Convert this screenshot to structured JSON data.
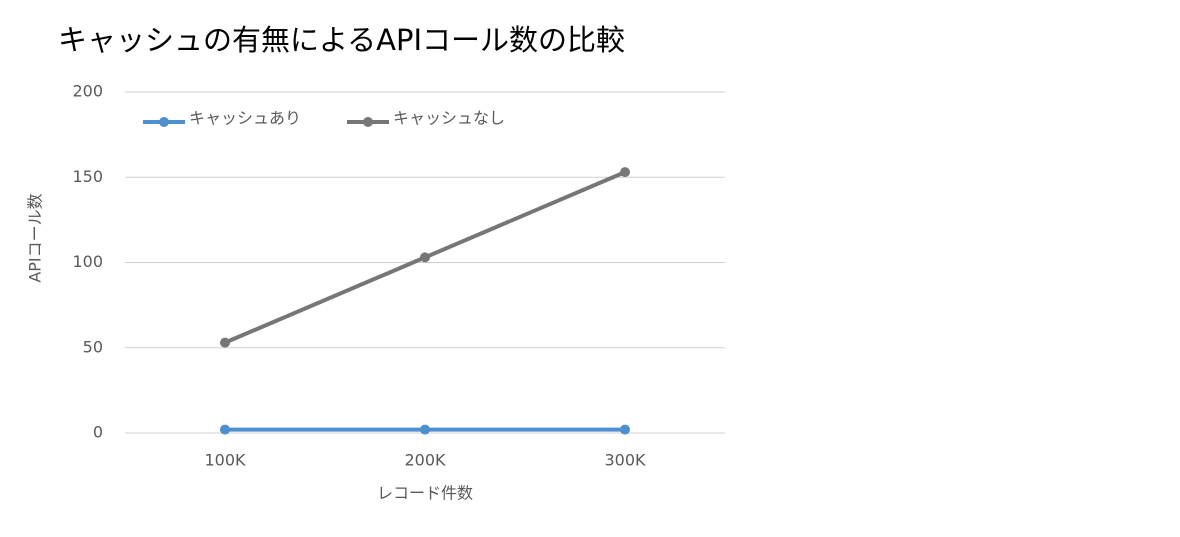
{
  "chart_data": {
    "type": "line",
    "title": "キャッシュの有無によるAPIコール数の比較",
    "x_label": "レコード件数",
    "y_label": "APIコール数",
    "categories": [
      "100K",
      "200K",
      "300K"
    ],
    "series": [
      {
        "name": "キャッシュあり",
        "color": "#4e8fd0",
        "values": [
          2,
          2,
          2
        ]
      },
      {
        "name": "キャッシュなし",
        "color": "#767676",
        "values": [
          53,
          103,
          153
        ]
      }
    ],
    "ylim": [
      0,
      200
    ],
    "yticks": [
      0,
      50,
      100,
      150,
      200
    ],
    "grid": true
  }
}
